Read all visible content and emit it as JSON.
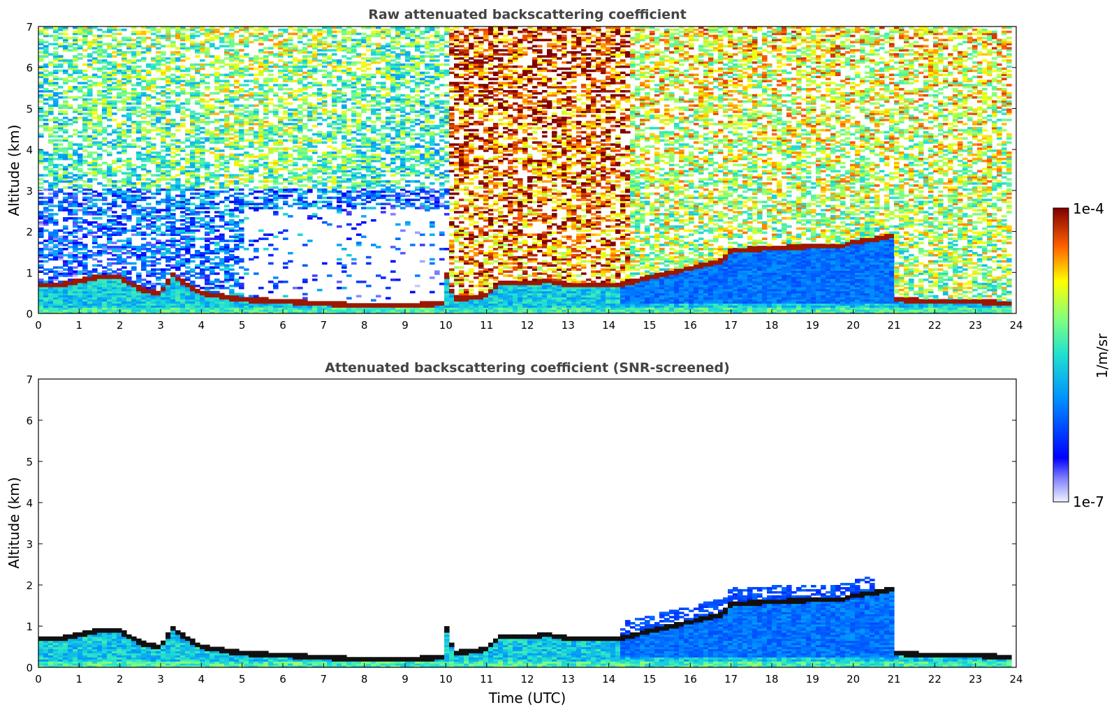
{
  "chart_data": [
    {
      "type": "heatmap",
      "title": "Raw attenuated backscattering coefficient",
      "xlabel": "",
      "ylabel": "Altitude (km)",
      "xlim": [
        0,
        24
      ],
      "ylim": [
        0,
        7
      ],
      "x_ticks": [
        "0",
        "1",
        "2",
        "3",
        "4",
        "5",
        "6",
        "7",
        "8",
        "9",
        "10",
        "11",
        "12",
        "13",
        "14",
        "15",
        "16",
        "17",
        "18",
        "19",
        "20",
        "21",
        "22",
        "23",
        "24"
      ],
      "y_ticks": [
        "0",
        "1",
        "2",
        "3",
        "4",
        "5",
        "6",
        "7"
      ],
      "screened": false
    },
    {
      "type": "heatmap",
      "title": "Attenuated backscattering coefficient (SNR-screened)",
      "xlabel": "Time (UTC)",
      "ylabel": "Altitude (km)",
      "xlim": [
        0,
        24
      ],
      "ylim": [
        0,
        7
      ],
      "x_ticks": [
        "0",
        "1",
        "2",
        "3",
        "4",
        "5",
        "6",
        "7",
        "8",
        "9",
        "10",
        "11",
        "12",
        "13",
        "14",
        "15",
        "16",
        "17",
        "18",
        "19",
        "20",
        "21",
        "22",
        "23",
        "24"
      ],
      "y_ticks": [
        "0",
        "1",
        "2",
        "3",
        "4",
        "5",
        "6",
        "7"
      ],
      "screened": true
    }
  ],
  "cloud_layer_km": [
    [
      0,
      0.65
    ],
    [
      0.5,
      0.65
    ],
    [
      1.0,
      0.75
    ],
    [
      1.5,
      0.85
    ],
    [
      2.0,
      0.85
    ],
    [
      2.5,
      0.55
    ],
    [
      3.0,
      0.45
    ],
    [
      3.3,
      0.9
    ],
    [
      3.6,
      0.7
    ],
    [
      4.0,
      0.45
    ],
    [
      5.0,
      0.3
    ],
    [
      6.0,
      0.25
    ],
    [
      7.0,
      0.2
    ],
    [
      8.0,
      0.15
    ],
    [
      9.0,
      0.15
    ],
    [
      9.9,
      0.2
    ],
    [
      10.0,
      0.95
    ],
    [
      10.2,
      0.3
    ],
    [
      11.0,
      0.4
    ],
    [
      11.3,
      0.7
    ],
    [
      12.0,
      0.7
    ],
    [
      12.5,
      0.75
    ],
    [
      13.0,
      0.65
    ],
    [
      14.2,
      0.65
    ],
    [
      16.8,
      1.25
    ],
    [
      17.0,
      1.5
    ],
    [
      18.0,
      1.55
    ],
    [
      19.0,
      1.6
    ],
    [
      19.7,
      1.6
    ],
    [
      20.0,
      1.7
    ],
    [
      21.0,
      1.85
    ],
    [
      21.05,
      0.3
    ],
    [
      22.0,
      0.25
    ],
    [
      23.0,
      0.25
    ],
    [
      23.8,
      0.2
    ]
  ],
  "colorbar": {
    "label": "1/m/sr",
    "max_label": "1e-4",
    "min_label": "1e-7"
  }
}
